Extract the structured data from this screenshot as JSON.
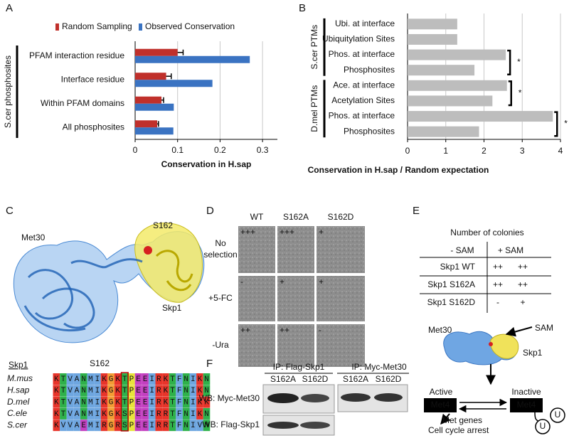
{
  "panel_labels": [
    "A",
    "B",
    "C",
    "D",
    "E",
    "F"
  ],
  "chart_data": [
    {
      "type": "hbar",
      "categories": [
        "PFAM interaction residue",
        "Interface residue",
        "Within PFAM domains",
        "All phosphosites"
      ],
      "series": [
        {
          "name": "Random Sampling",
          "color": "#c0302b",
          "values": [
            0.1,
            0.073,
            0.062,
            0.052
          ],
          "errors": [
            0.013,
            0.012,
            0.005,
            0.003
          ]
        },
        {
          "name": "Observed Conservation",
          "color": "#3a73c2",
          "values": [
            0.27,
            0.182,
            0.091,
            0.09
          ]
        }
      ],
      "ylabel": "S.cer phosphosites",
      "xlabel": "Conservation in H.sap",
      "xlim": [
        0,
        0.335
      ],
      "xticks": [
        0,
        0.1,
        0.2,
        0.3
      ],
      "grid": true,
      "legend": "top"
    },
    {
      "type": "hbar",
      "categories": [
        "Ubi. at interface",
        "Ubiquitylation Sites",
        "Phos. at interface",
        "Phosphosites",
        "Ace. at interface",
        "Acetylation Sites",
        "Phos. at interface",
        "Phosphosites"
      ],
      "values": [
        1.3,
        1.3,
        2.57,
        1.75,
        2.6,
        2.22,
        3.8,
        1.87
      ],
      "color": "#bdbdbd",
      "groups": [
        "S.cer PTMs",
        "D.mel PTMs"
      ],
      "annotations": [
        "*",
        "*",
        "*"
      ],
      "xlabel": "Conservation in H.sap / Random expectation",
      "xlim": [
        0,
        4
      ],
      "xticks": [
        0,
        1,
        2,
        3,
        4
      ],
      "grid": true
    }
  ],
  "structure": {
    "labels": [
      "Met30",
      "S162",
      "Skp1"
    ]
  },
  "alignment": {
    "protein": "Skp1",
    "site": "S162",
    "species": [
      "M.mus",
      "H.sap",
      "D.mel",
      "C.ele",
      "S.cer"
    ],
    "sequences": [
      "KTVANMIKGKTPEEIRKTFNIKN",
      "KTVANMIKGKTPEEIRKTFNIKN",
      "KTVANMIKGKTPEEIRKTFNIKK",
      "KTVANMIKGKSPEEIRRTFNIKN",
      "KVVAEMIRGRSPEEIRRTFNIVN"
    ]
  },
  "growth_assay": {
    "columns": [
      "WT",
      "S162A",
      "S162D"
    ],
    "row_labels": [
      [
        "No",
        "selection"
      ],
      [
        "+5-FC"
      ],
      [
        "-Ura"
      ]
    ],
    "scores": [
      [
        "+++",
        "+++",
        "+"
      ],
      [
        "-",
        "+",
        "+"
      ],
      [
        "++",
        "++",
        "-"
      ]
    ]
  },
  "colony_table": {
    "title": "Number of colonies",
    "columns": [
      "- SAM",
      "+ SAM"
    ],
    "rows": [
      {
        "label": "Skp1 WT",
        "cells": [
          "++",
          "++"
        ]
      },
      {
        "label": "Skp1 S162A",
        "cells": [
          "++",
          "++"
        ]
      },
      {
        "label": "Skp1 S162D",
        "cells": [
          "-",
          "+"
        ]
      }
    ]
  },
  "pathway": {
    "met30": "Met30",
    "skp1": "Skp1",
    "sam": "SAM",
    "active": "Active",
    "inactive": "Inactive",
    "met4": [
      "Met4",
      "Met4"
    ],
    "ubiquitin": [
      "U",
      "U"
    ],
    "outcome": [
      "Met genes",
      "Cell cycle arrest"
    ]
  },
  "western_blot": {
    "ip": [
      "IP: Flag-Skp1",
      "IP: Myc-Met30"
    ],
    "lanes": [
      "S162A",
      "S162D",
      "S162A",
      "S162D"
    ],
    "wb": [
      "WB: Myc-Met30",
      "WB: Flag-Skp1"
    ]
  }
}
